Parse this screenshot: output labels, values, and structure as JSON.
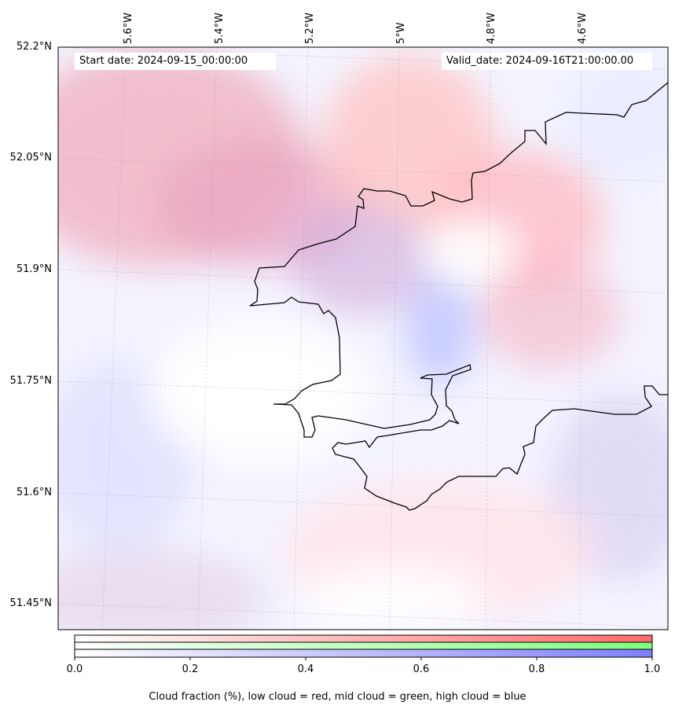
{
  "map": {
    "start_date": "Start date: 2024-09-15_00:00:00",
    "valid_date": "Valid_date: 2024-09-16T21:00:00.00",
    "longitude_labels": [
      "5.6°W",
      "5.4°W",
      "5.2°W",
      "5°W",
      "4.8°W",
      "4.6°W"
    ],
    "latitude_labels": [
      "52.2°N",
      "52.05°N",
      "51.9°N",
      "51.75°N",
      "51.6°N",
      "51.45°N"
    ],
    "colors": {
      "low_cloud": "#ff6a6a",
      "mid_cloud": "#7cff7c",
      "high_cloud": "#7f7fff",
      "coastline": "#000000"
    }
  },
  "colorbar": {
    "ticks": [
      "0.0",
      "0.2",
      "0.4",
      "0.6",
      "0.8",
      "1.0"
    ],
    "caption": "Cloud fraction (%), low cloud = red, mid cloud = green, high cloud = blue"
  }
}
